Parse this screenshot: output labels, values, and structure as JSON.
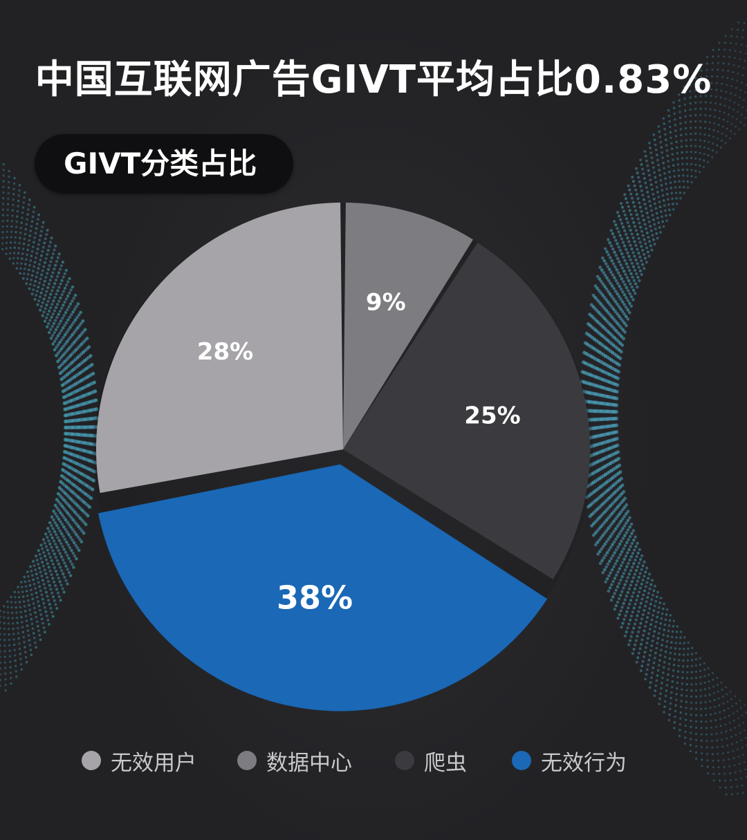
{
  "title": "中国互联网广告GIVT平均占比0.83%",
  "chart_data": {
    "type": "pie",
    "subtitle": "GIVT分类占比",
    "slices": [
      {
        "name": "数据中心",
        "value": 9,
        "label": "9%",
        "color": "#7d7c80"
      },
      {
        "name": "爬虫",
        "value": 25,
        "label": "25%",
        "color": "#3b3a3e"
      },
      {
        "name": "无效行为",
        "value": 38,
        "label": "38%",
        "color": "#1a68b6",
        "exploded": true
      },
      {
        "name": "无效用户",
        "value": 28,
        "label": "28%",
        "color": "#a6a4a8"
      }
    ],
    "legend": {
      "placement": "bottom",
      "items": [
        {
          "label": "无效用户",
          "color": "#a6a4a8"
        },
        {
          "label": "数据中心",
          "color": "#7d7c80"
        },
        {
          "label": "爬虫",
          "color": "#3b3a3e"
        },
        {
          "label": "无效行为",
          "color": "#1a68b6"
        }
      ]
    }
  }
}
